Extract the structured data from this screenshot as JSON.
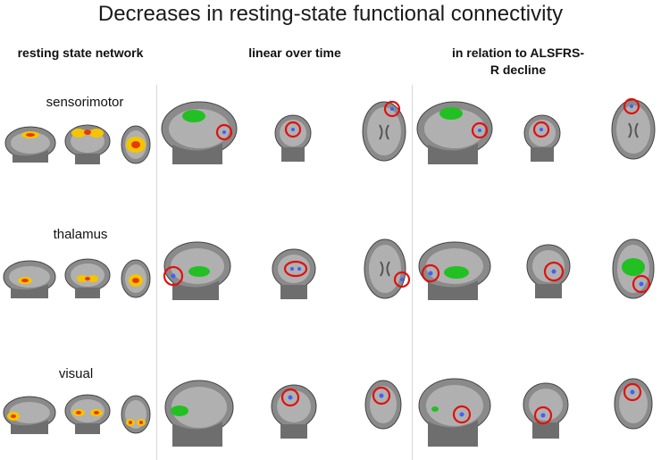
{
  "figure": {
    "title": "Decreases in resting-state functional connectivity",
    "columns": [
      {
        "label": "resting state network"
      },
      {
        "label": "linear over time"
      },
      {
        "label": "in relation to ALSFRS-R decline"
      }
    ],
    "rows": [
      {
        "label": "sensorimotor"
      },
      {
        "label": "thalamus"
      },
      {
        "label": "visual"
      }
    ],
    "colors": {
      "network_activation": "#f5c400",
      "cluster": "#22c022",
      "highlight_circle": "#e01010",
      "voxel": "#4060ff"
    }
  }
}
